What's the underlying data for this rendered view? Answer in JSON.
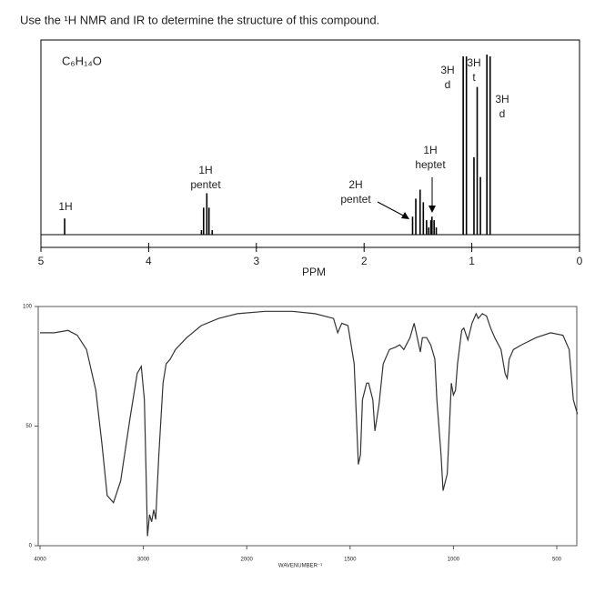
{
  "question": "Use the ¹H NMR and IR to determine the structure of this compound.",
  "chart_data": [
    {
      "type": "peaks",
      "title": "C₆H₁₄O",
      "xlabel": "PPM",
      "xlim": [
        5,
        0
      ],
      "xticks": [
        5,
        4,
        3,
        2,
        1,
        0
      ],
      "ylim": [
        0,
        100
      ],
      "color": "#000000",
      "x": [
        4.78,
        3.51,
        3.49,
        3.46,
        3.44,
        3.41,
        1.55,
        1.52,
        1.48,
        1.45,
        1.42,
        1.4,
        1.38,
        1.37,
        1.35,
        1.33,
        1.08,
        1.05,
        0.98,
        0.95,
        0.92,
        0.86,
        0.83
      ],
      "values": [
        9,
        2.5,
        15,
        23,
        15,
        2.5,
        10,
        20,
        25,
        18,
        8,
        4,
        8,
        10,
        8,
        4,
        99,
        99,
        43,
        82,
        32,
        100,
        99
      ],
      "annotations": [
        [
          "1H"
        ],
        [
          "1H",
          "pentet"
        ],
        [
          "2H",
          "pentet"
        ],
        [
          "1H",
          "heptet"
        ],
        [
          "3H",
          "d"
        ],
        [
          "3H",
          "t"
        ],
        [
          "3H",
          "d"
        ]
      ]
    },
    {
      "type": "line",
      "xlabel": "WAVENUMBER⁻¹",
      "color": "#333333",
      "xlim": [
        4000,
        400
      ],
      "xticks": [
        4000,
        3000,
        2000,
        1500,
        1000,
        500
      ],
      "ylim": [
        0,
        100
      ],
      "yticks": [
        0,
        50,
        100
      ],
      "x": [
        4000,
        3860,
        3730,
        3640,
        3550,
        3460,
        3400,
        3350,
        3290,
        3220,
        3130,
        3060,
        3020,
        2990,
        2970,
        2960,
        2940,
        2920,
        2900,
        2880,
        2870,
        2850,
        2810,
        2780,
        2740,
        2690,
        2580,
        2440,
        2270,
        2090,
        1910,
        1780,
        1670,
        1580,
        1560,
        1540,
        1510,
        1480,
        1460,
        1450,
        1440,
        1420,
        1410,
        1390,
        1380,
        1360,
        1340,
        1310,
        1280,
        1260,
        1240,
        1210,
        1190,
        1180,
        1160,
        1150,
        1130,
        1110,
        1090,
        1080,
        1060,
        1050,
        1030,
        1020,
        1010,
        1000,
        990,
        980,
        960,
        950,
        930,
        910,
        890,
        880,
        860,
        840,
        820,
        800,
        770,
        750,
        740,
        730,
        710,
        670,
        600,
        530,
        470,
        440,
        420,
        400
      ],
      "values": [
        89,
        89,
        90,
        88,
        82,
        65,
        42,
        21,
        18,
        27,
        53,
        72,
        75,
        61,
        23,
        4,
        13,
        10,
        15,
        11,
        21,
        38,
        68,
        76,
        78,
        82,
        87,
        92,
        95,
        97,
        98,
        98,
        97,
        95,
        89,
        93,
        92,
        76,
        34,
        38,
        61,
        68,
        68,
        61,
        48,
        59,
        76,
        82,
        83,
        84,
        82,
        87,
        93,
        89,
        81,
        87,
        87,
        84,
        78,
        61,
        38,
        23,
        30,
        49,
        68,
        63,
        65,
        76,
        90,
        91,
        86,
        93,
        97,
        95,
        97,
        96,
        91,
        87,
        82,
        72,
        70,
        78,
        82,
        84,
        87,
        89,
        88,
        82,
        61,
        55
      ]
    }
  ]
}
